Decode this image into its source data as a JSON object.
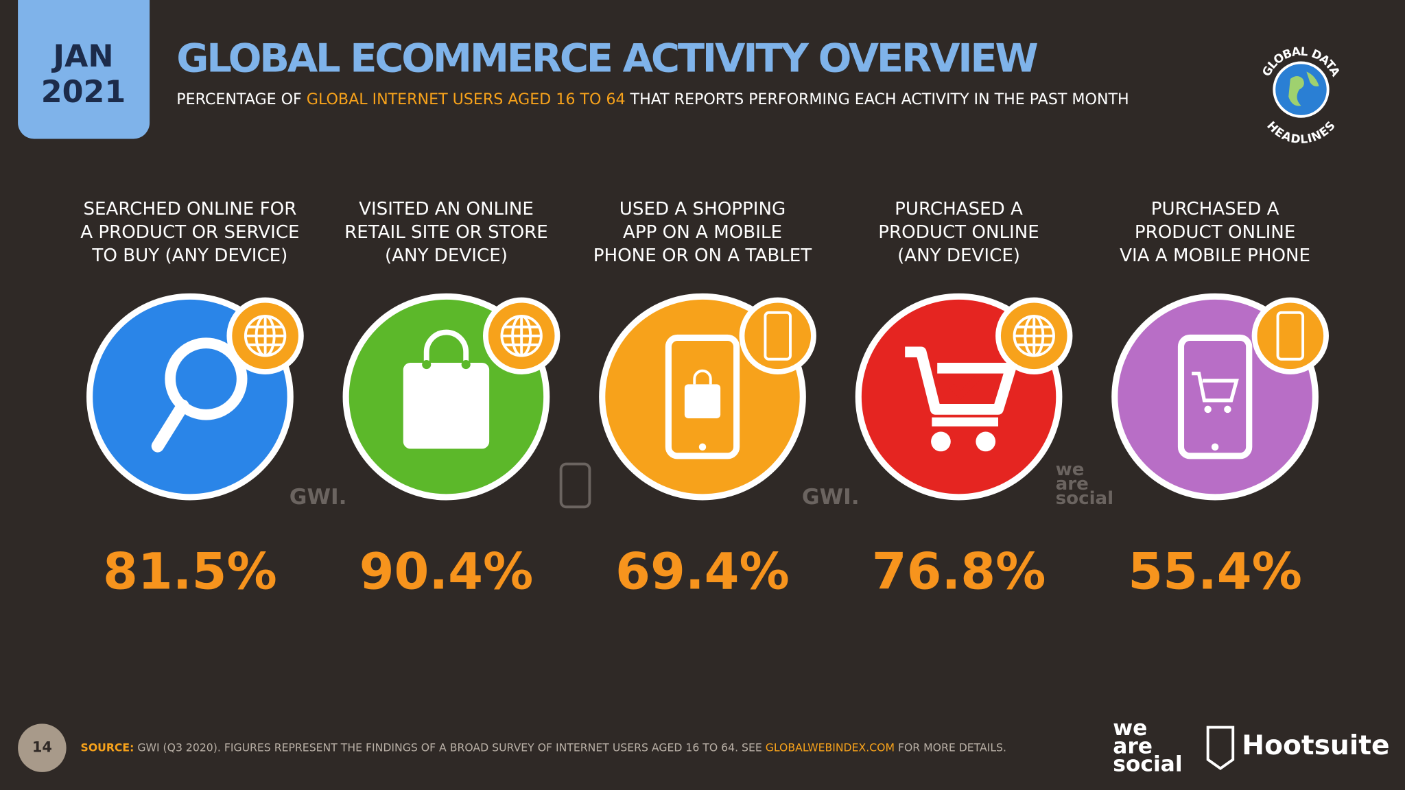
{
  "header": {
    "month": "JAN",
    "year": "2021",
    "title": "GLOBAL ECOMMERCE ACTIVITY OVERVIEW",
    "subtitle": {
      "before": "PERCENTAGE OF ",
      "highlight": "GLOBAL INTERNET USERS AGED 16 TO 64",
      "after": " THAT REPORTS PERFORMING EACH ACTIVITY IN THE PAST MONTH"
    },
    "badge": {
      "top": "GLOBAL DATA",
      "bottom": "HEADLINES"
    }
  },
  "items": [
    {
      "label": [
        "SEARCHED ONLINE FOR",
        "A PRODUCT OR SERVICE",
        "TO BUY (ANY DEVICE)"
      ],
      "value": "81.5%"
    },
    {
      "label": [
        "VISITED AN ONLINE",
        "RETAIL SITE OR STORE",
        "(ANY DEVICE)"
      ],
      "value": "90.4%"
    },
    {
      "label": [
        "USED A SHOPPING",
        "APP ON A MOBILE",
        "PHONE OR ON A TABLET"
      ],
      "value": "69.4%"
    },
    {
      "label": [
        "PURCHASED A",
        "PRODUCT ONLINE",
        "(ANY DEVICE)"
      ],
      "value": "76.8%"
    },
    {
      "label": [
        "PURCHASED A",
        "PRODUCT ONLINE",
        "VIA A MOBILE PHONE"
      ],
      "value": "55.4%"
    }
  ],
  "watermarks": {
    "gwi": "GWI.",
    "we": "we",
    "are": "are",
    "social": "social"
  },
  "footer": {
    "page": "14",
    "source_label": "SOURCE:",
    "source_text": " GWI (Q3 2020). FIGURES REPRESENT THE FINDINGS OF A BROAD SURVEY OF INTERNET USERS AGED 16 TO 64. SEE ",
    "source_link": "GLOBALWEBINDEX.COM",
    "source_end": " FOR MORE DETAILS.",
    "logo_we": "we",
    "logo_are": "are",
    "logo_social": "social",
    "logo_hootsuite": "Hootsuite"
  }
}
